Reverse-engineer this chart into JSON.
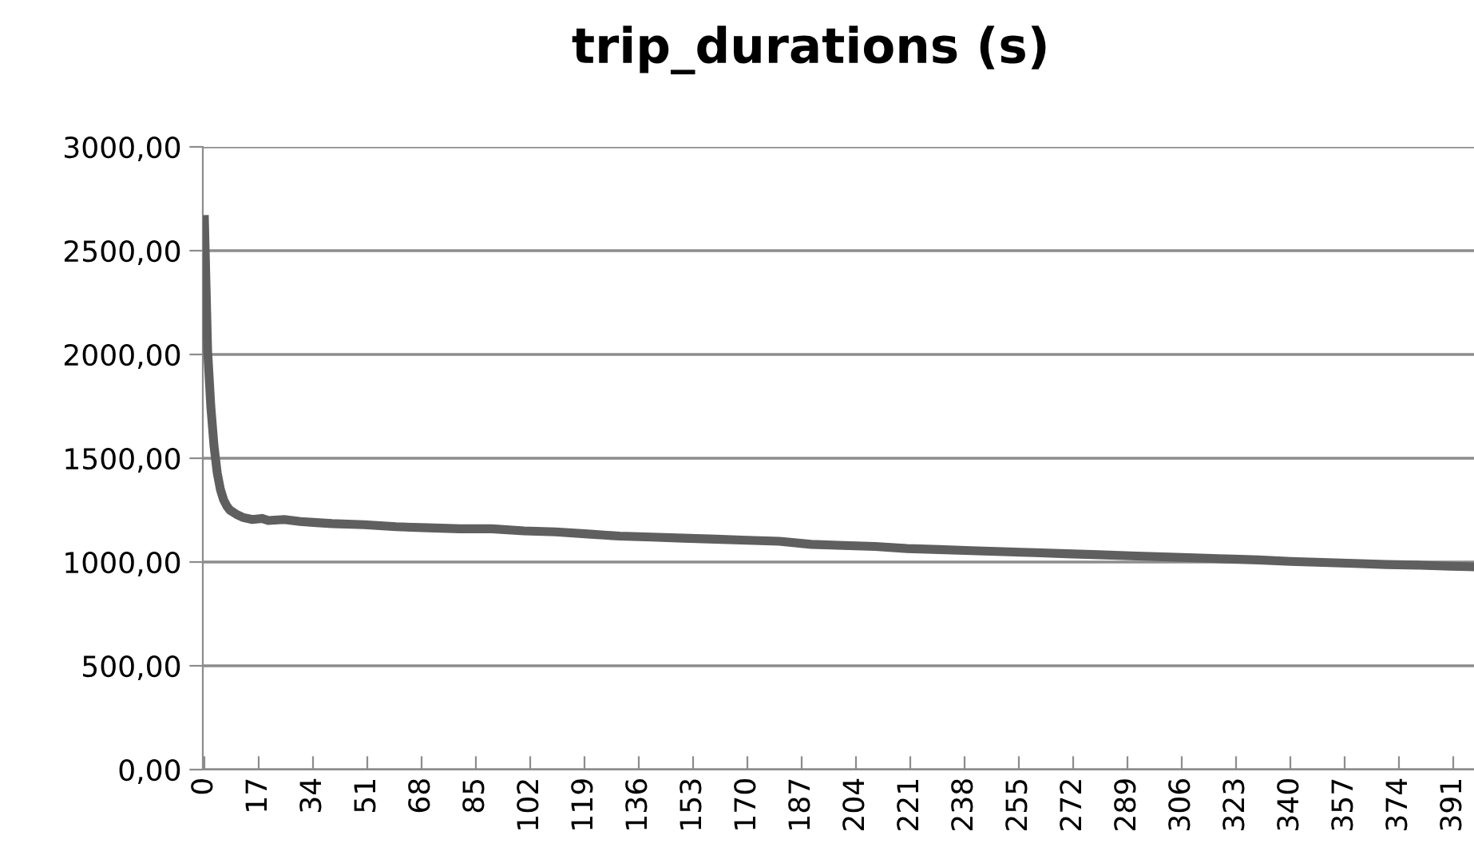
{
  "chart_data": {
    "type": "line",
    "title": "trip_durations (s)",
    "x": [
      0,
      1,
      2,
      3,
      4,
      5,
      6,
      7,
      8,
      10,
      12,
      15,
      18,
      20,
      25,
      30,
      35,
      40,
      50,
      60,
      70,
      80,
      90,
      100,
      110,
      120,
      130,
      140,
      150,
      160,
      170,
      180,
      190,
      200,
      210,
      220,
      230,
      240,
      250,
      260,
      270,
      280,
      290,
      300,
      310,
      320,
      330,
      340,
      350,
      360,
      370,
      380,
      390,
      397
    ],
    "series": [
      {
        "color": "#5f5f5f",
        "values": [
          2650,
          2020,
          1750,
          1560,
          1430,
          1350,
          1300,
          1270,
          1250,
          1230,
          1215,
          1205,
          1210,
          1200,
          1205,
          1195,
          1190,
          1185,
          1180,
          1170,
          1165,
          1160,
          1160,
          1150,
          1145,
          1135,
          1125,
          1120,
          1115,
          1110,
          1105,
          1100,
          1085,
          1080,
          1075,
          1065,
          1060,
          1055,
          1050,
          1045,
          1040,
          1035,
          1030,
          1025,
          1020,
          1015,
          1010,
          1003,
          998,
          993,
          988,
          985,
          980,
          977
        ]
      }
    ],
    "xlim": [
      -0.5,
      397.5
    ],
    "xticks": [
      0,
      17,
      34,
      51,
      68,
      85,
      102,
      119,
      136,
      153,
      170,
      187,
      204,
      221,
      238,
      255,
      272,
      289,
      306,
      323,
      340,
      357,
      374,
      391
    ],
    "ylim": [
      0,
      3000
    ],
    "yticks": [
      {
        "value": 0,
        "label": "0,00"
      },
      {
        "value": 500,
        "label": "500,00"
      },
      {
        "value": 1000,
        "label": "1000,00"
      },
      {
        "value": 1500,
        "label": "1500,00"
      },
      {
        "value": 2000,
        "label": "2000,00"
      },
      {
        "value": 2500,
        "label": "2500,00"
      },
      {
        "value": 3000,
        "label": "3000,00"
      }
    ],
    "grid": "y",
    "marker": "none",
    "line_style": "solid"
  }
}
